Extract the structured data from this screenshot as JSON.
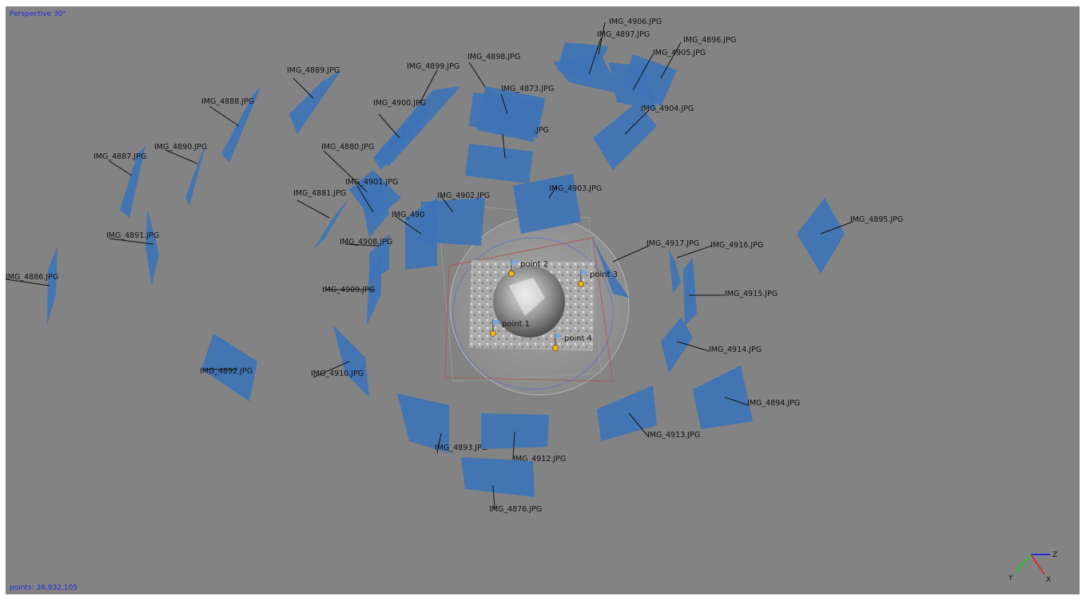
{
  "viewport": {
    "view_mode": "Perspective 30°",
    "points_label": "points: 36,932,105"
  },
  "colors": {
    "background": "#838383",
    "camera_fill": "#3e74b6",
    "camera_line": "#111111",
    "marker_pin": "#f2b522",
    "overlay_text": "#1a2fd6"
  },
  "cameras": [
    "IMG_4906.JPG",
    "IMG_4897.JPG",
    "IMG_4896.JPG",
    "IMG_4905.JPG",
    "IMG_4898.JPG",
    "IMG_4899.JPG",
    "IMG_4889.JPG",
    "IMG_4873.JPG",
    "IMG_4900.JPG",
    "IMG_4888.JPG",
    "IMG_4904.JPG",
    ".JPG",
    "IMG_4890.JPG",
    "IMG_4887.JPG",
    "IMG_4880.JPG",
    "IMG_4901.JPG",
    "IMG_4881.JPG",
    "IMG_4902.JPG",
    "IMG_4903.JPG",
    "IMG_490",
    "IMG_4891.JPG",
    "IMG_4908.JPG",
    "IMG_4895.JPG",
    "IMG_4917.JPG",
    "IMG_4916.JPG",
    "IMG_4886.JPG",
    "IMG_4909.JPG",
    "IMG_4915.JPG",
    "IMG_4914.JPG",
    "IMG_4892.JPG",
    "IMG_4910.JPG",
    "IMG_4894.JPG",
    "IMG_4913.JPG",
    "IMG_4893.JPG",
    "IMG_4912.JPG",
    "IMG_4876.JPG"
  ],
  "markers": [
    "point 1",
    "point 2",
    "point 3",
    "point 4"
  ],
  "axes": [
    "X",
    "Y",
    "Z"
  ]
}
